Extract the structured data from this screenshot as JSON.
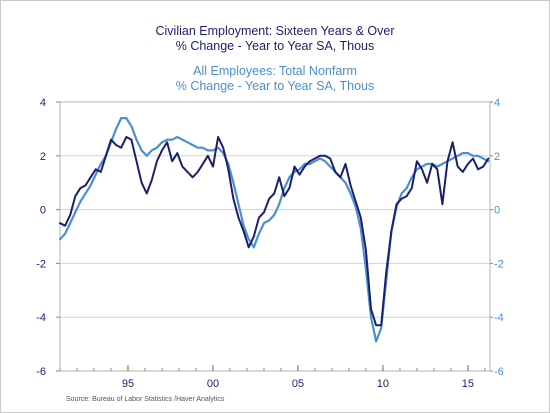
{
  "titles": {
    "line1": "Civilian Employment: Sixteen Years & Over",
    "line2": "% Change - Year to Year     SA, Thous",
    "line3": "All Employees: Total Nonfarm",
    "line4": "% Change - Year to Year     SA, Thous"
  },
  "source": "Source:  Bureau of Labor Statistics /Haver Analytics",
  "chart_data": {
    "type": "line",
    "xlim": [
      1991.0,
      2016.3
    ],
    "ylim": [
      -6,
      4
    ],
    "grid": true,
    "x_ticks": [
      {
        "value": 1995,
        "label": "95"
      },
      {
        "value": 2000,
        "label": "00"
      },
      {
        "value": 2005,
        "label": "05"
      },
      {
        "value": 2010,
        "label": "10"
      },
      {
        "value": 2015,
        "label": "15"
      }
    ],
    "y_ticks_left": [
      "4",
      "2",
      "0",
      "-2",
      "-4",
      "-6"
    ],
    "y_ticks_right": [
      "4",
      "2",
      "0",
      "-2",
      "-4",
      "-6"
    ],
    "y_tick_values": [
      4,
      2,
      0,
      -2,
      -4,
      -6
    ],
    "series": [
      {
        "name": "Civilian Employment: Sixteen Years & Over",
        "color": "#1c1f6b",
        "axis": "left",
        "x": [
          1991.0,
          1991.3,
          1991.6,
          1991.9,
          1992.2,
          1992.5,
          1992.8,
          1993.1,
          1993.4,
          1993.7,
          1994.0,
          1994.3,
          1994.6,
          1994.9,
          1995.2,
          1995.5,
          1995.8,
          1996.1,
          1996.4,
          1996.7,
          1997.0,
          1997.3,
          1997.6,
          1997.9,
          1998.2,
          1998.5,
          1998.8,
          1999.1,
          1999.4,
          1999.7,
          2000.0,
          2000.3,
          2000.6,
          2000.9,
          2001.2,
          2001.5,
          2001.8,
          2002.1,
          2002.4,
          2002.7,
          2003.0,
          2003.3,
          2003.6,
          2003.9,
          2004.2,
          2004.5,
          2004.8,
          2005.1,
          2005.4,
          2005.7,
          2006.0,
          2006.3,
          2006.6,
          2006.9,
          2007.2,
          2007.5,
          2007.8,
          2008.1,
          2008.4,
          2008.7,
          2009.0,
          2009.3,
          2009.6,
          2009.9,
          2010.2,
          2010.5,
          2010.8,
          2011.1,
          2011.4,
          2011.7,
          2012.0,
          2012.3,
          2012.6,
          2012.9,
          2013.2,
          2013.5,
          2013.8,
          2014.1,
          2014.4,
          2014.7,
          2015.0,
          2015.3,
          2015.6,
          2015.9,
          2016.2
        ],
        "y": [
          -0.5,
          -0.6,
          -0.2,
          0.5,
          0.8,
          0.9,
          1.2,
          1.5,
          1.4,
          2.0,
          2.6,
          2.4,
          2.3,
          2.7,
          2.6,
          1.8,
          1.0,
          0.6,
          1.1,
          1.8,
          2.2,
          2.5,
          1.8,
          2.1,
          1.6,
          1.4,
          1.2,
          1.4,
          1.7,
          2.0,
          1.6,
          2.7,
          2.3,
          1.5,
          0.4,
          -0.3,
          -0.8,
          -1.4,
          -1.0,
          -0.3,
          -0.1,
          0.4,
          0.6,
          1.2,
          0.5,
          0.8,
          1.6,
          1.3,
          1.6,
          1.8,
          1.9,
          2.0,
          2.0,
          1.9,
          1.4,
          1.2,
          1.7,
          0.9,
          0.3,
          -0.3,
          -1.5,
          -3.7,
          -4.3,
          -4.3,
          -2.3,
          -0.8,
          0.2,
          0.4,
          0.5,
          0.8,
          1.8,
          1.5,
          1.0,
          1.7,
          1.5,
          0.2,
          1.8,
          2.5,
          1.6,
          1.4,
          1.7,
          1.9,
          1.5,
          1.6,
          1.9
        ]
      },
      {
        "name": "All Employees: Total Nonfarm",
        "color": "#4a8fd0",
        "axis": "right",
        "x": [
          1991.0,
          1991.3,
          1991.6,
          1991.9,
          1992.2,
          1992.5,
          1992.8,
          1993.1,
          1993.4,
          1993.7,
          1994.0,
          1994.3,
          1994.6,
          1994.9,
          1995.2,
          1995.5,
          1995.8,
          1996.1,
          1996.4,
          1996.7,
          1997.0,
          1997.3,
          1997.6,
          1997.9,
          1998.2,
          1998.5,
          1998.8,
          1999.1,
          1999.4,
          1999.7,
          2000.0,
          2000.3,
          2000.6,
          2000.9,
          2001.2,
          2001.5,
          2001.8,
          2002.1,
          2002.4,
          2002.7,
          2003.0,
          2003.3,
          2003.6,
          2003.9,
          2004.2,
          2004.5,
          2004.8,
          2005.1,
          2005.4,
          2005.7,
          2006.0,
          2006.3,
          2006.6,
          2006.9,
          2007.2,
          2007.5,
          2007.8,
          2008.1,
          2008.4,
          2008.7,
          2009.0,
          2009.3,
          2009.6,
          2009.9,
          2010.2,
          2010.5,
          2010.8,
          2011.1,
          2011.4,
          2011.7,
          2012.0,
          2012.3,
          2012.6,
          2012.9,
          2013.2,
          2013.5,
          2013.8,
          2014.1,
          2014.4,
          2014.7,
          2015.0,
          2015.3,
          2015.6,
          2015.9,
          2016.2
        ],
        "y": [
          -1.1,
          -0.9,
          -0.5,
          -0.1,
          0.3,
          0.6,
          0.9,
          1.3,
          1.7,
          2.0,
          2.5,
          3.0,
          3.4,
          3.4,
          3.1,
          2.6,
          2.2,
          2.0,
          2.2,
          2.3,
          2.5,
          2.6,
          2.6,
          2.7,
          2.6,
          2.5,
          2.4,
          2.3,
          2.3,
          2.2,
          2.2,
          2.3,
          2.1,
          1.7,
          1.0,
          0.2,
          -0.6,
          -1.1,
          -1.4,
          -0.9,
          -0.5,
          -0.4,
          -0.2,
          0.2,
          0.8,
          1.2,
          1.4,
          1.5,
          1.7,
          1.7,
          1.8,
          1.9,
          1.8,
          1.6,
          1.4,
          1.2,
          1.0,
          0.6,
          0.1,
          -0.7,
          -2.2,
          -4.0,
          -4.9,
          -4.4,
          -2.6,
          -0.8,
          0.1,
          0.6,
          0.8,
          1.2,
          1.5,
          1.6,
          1.7,
          1.7,
          1.6,
          1.7,
          1.8,
          1.9,
          2.0,
          2.1,
          2.1,
          2.0,
          2.0,
          1.9,
          1.8
        ]
      }
    ]
  }
}
